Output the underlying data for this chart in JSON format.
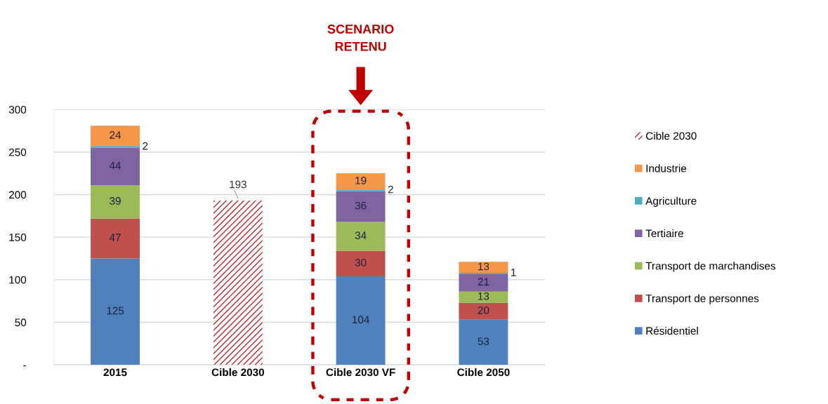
{
  "chart_data": {
    "type": "bar",
    "stacked": true,
    "categories": [
      "2015",
      "Cible 2030",
      "Cible 2030 VF",
      "Cible 2050"
    ],
    "series": [
      {
        "name": "Résidentiel",
        "color": "#4f81bd",
        "values": [
          125,
          null,
          104,
          53
        ]
      },
      {
        "name": "Transport de personnes",
        "color": "#c0504d",
        "values": [
          47,
          null,
          30,
          20
        ]
      },
      {
        "name": "Transport de marchandises",
        "color": "#9bbb59",
        "values": [
          39,
          null,
          34,
          13
        ]
      },
      {
        "name": "Tertiaire",
        "color": "#8064a2",
        "values": [
          44,
          null,
          36,
          21
        ]
      },
      {
        "name": "Agriculture",
        "color": "#4bacc6",
        "values": [
          2,
          null,
          2,
          1
        ]
      },
      {
        "name": "Industrie",
        "color": "#f79646",
        "values": [
          24,
          null,
          19,
          13
        ]
      },
      {
        "name": "Cible 2030",
        "color": "#c0282d",
        "values": [
          null,
          193,
          null,
          null
        ]
      }
    ],
    "ylim": [
      0,
      300
    ],
    "yticks": [
      {
        "value": 0,
        "label": "-"
      },
      50,
      100,
      150,
      200,
      250,
      300
    ],
    "grid": "y",
    "legend": "right",
    "data_labels": true,
    "annotations": [
      "SCENARIO\nRETENU"
    ]
  }
}
